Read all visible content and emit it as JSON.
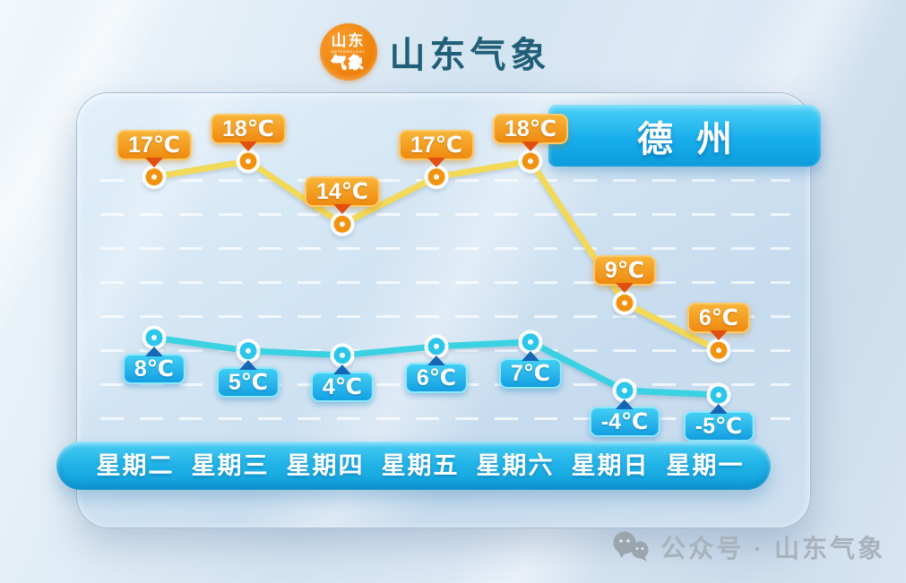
{
  "header": {
    "logo": {
      "top": "山东",
      "mid": "METEOROLOGY",
      "bottom": "气象"
    },
    "title": "山东气象"
  },
  "city_banner": {
    "label": "德州"
  },
  "chart_data": {
    "type": "line",
    "categories": [
      "星期二",
      "星期三",
      "星期四",
      "星期五",
      "星期六",
      "星期日",
      "星期一"
    ],
    "series": [
      {
        "name": "high",
        "values": [
          17,
          18,
          14,
          17,
          18,
          9,
          6
        ],
        "labels": [
          "17℃",
          "18℃",
          "14℃",
          "17℃",
          "18℃",
          "9℃",
          "6℃"
        ],
        "line_color": "#f2da58",
        "point_color": "#f2930f",
        "badge_colors": [
          "#f8b437",
          "#ee8a10"
        ],
        "badge_border": "#fcc868",
        "pointer_color": "#e04e10"
      },
      {
        "name": "low",
        "values": [
          8,
          5,
          4,
          6,
          7,
          -4,
          -5
        ],
        "labels": [
          "8℃",
          "5℃",
          "4℃",
          "6℃",
          "7℃",
          "-4℃",
          "-5℃"
        ],
        "line_color": "#3ad2e3",
        "point_color": "#2bc6ea",
        "badge_colors": [
          "#41cff4",
          "#149fe2"
        ],
        "badge_border": "#8fe7fb",
        "pointer_color": "#1567b6"
      }
    ],
    "ylim": [
      -5,
      18
    ],
    "grid": "horizontal-dashed-white",
    "legend": "none"
  },
  "colors": {
    "city_banner": "#18aeec",
    "weekday_bar": "#1fb0e5",
    "title_text": "#215f78",
    "card_background": "#cfe1f0",
    "watermark_text": "#a8b2bb"
  },
  "footer": {
    "watermark": "公众号 · 山东气象"
  }
}
